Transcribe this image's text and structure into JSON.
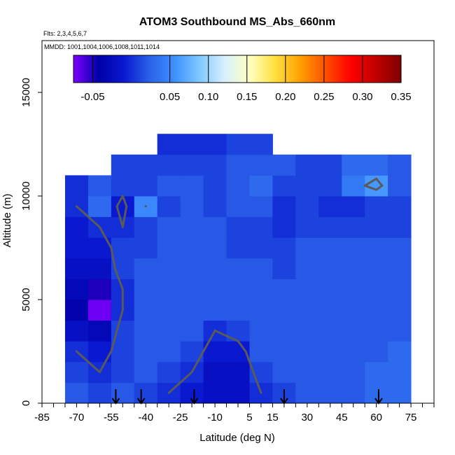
{
  "chart_data": {
    "type": "heatmap",
    "title": "ATOM3 Southbound MS_Abs_660nm",
    "flights_note": "Flts: 2,3,4,5,6,7",
    "dates_note": "MMDD: 1001,1004,1006,1008,1011,1014",
    "xlabel": "Latitude (deg N)",
    "ylabel": "Altitude (m)",
    "xlim": [
      -85,
      85
    ],
    "ylim": [
      0,
      17500
    ],
    "x_ticks": [
      -85,
      -70,
      -55,
      -40,
      -25,
      -10,
      5,
      15,
      30,
      45,
      60,
      75
    ],
    "y_ticks": [
      0,
      5000,
      10000,
      15000
    ],
    "colorbar": {
      "range": [
        -0.075,
        0.35
      ],
      "tick_values": [
        -0.05,
        0.05,
        0.1,
        0.15,
        0.2,
        0.25,
        0.3,
        0.35
      ],
      "tick_labels": [
        "-0.05",
        "0.05",
        "0.10",
        "0.15",
        "0.20",
        "0.25",
        "0.30",
        "0.35"
      ],
      "colors": [
        "#7f00ff",
        "#0000a8",
        "#0a18d0",
        "#2a60e8",
        "#3d90ff",
        "#80c8ff",
        "#d8f0ff",
        "#ffffc0",
        "#ffe040",
        "#ffa000",
        "#ff5000",
        "#ff0000",
        "#c00000",
        "#800000"
      ]
    },
    "lat_centers": [
      -70,
      -60,
      -50,
      -40,
      -30,
      -20,
      -10,
      0,
      10,
      20,
      30,
      40,
      50,
      60,
      70
    ],
    "alt_centers": [
      500,
      1500,
      2500,
      3500,
      4500,
      5500,
      6500,
      7500,
      8500,
      9500,
      10500,
      11500,
      12500
    ],
    "values": [
      [
        0.02,
        0.01,
        0.02,
        0.01,
        0.0,
        -0.01,
        -0.02,
        -0.02,
        0.0,
        0.01,
        0.02,
        0.02,
        0.02,
        0.03,
        0.03
      ],
      [
        0.01,
        0.0,
        0.01,
        0.02,
        0.01,
        0.0,
        -0.02,
        -0.02,
        0.01,
        0.02,
        0.02,
        0.02,
        0.02,
        0.03,
        0.03
      ],
      [
        0.0,
        -0.01,
        0.01,
        0.02,
        0.02,
        0.01,
        -0.01,
        -0.01,
        0.02,
        0.02,
        0.02,
        0.02,
        0.02,
        0.02,
        0.03
      ],
      [
        -0.02,
        -0.03,
        0.01,
        0.02,
        0.02,
        0.02,
        0.0,
        0.01,
        0.02,
        0.02,
        0.02,
        0.02,
        0.02,
        0.02,
        0.02
      ],
      [
        -0.04,
        -0.07,
        0.0,
        0.02,
        0.02,
        0.02,
        0.02,
        0.02,
        0.02,
        0.02,
        0.02,
        0.02,
        0.02,
        0.02,
        0.02
      ],
      [
        -0.03,
        -0.05,
        0.0,
        0.02,
        0.02,
        0.02,
        0.02,
        0.02,
        0.02,
        0.02,
        0.02,
        0.02,
        0.02,
        0.02,
        0.02
      ],
      [
        -0.02,
        -0.02,
        0.01,
        0.02,
        0.02,
        0.02,
        0.02,
        0.02,
        0.02,
        0.01,
        0.02,
        0.02,
        0.02,
        0.02,
        0.02
      ],
      [
        -0.01,
        -0.01,
        0.01,
        0.01,
        0.02,
        0.02,
        0.02,
        0.01,
        0.01,
        0.01,
        0.02,
        0.02,
        0.02,
        0.02,
        0.02
      ],
      [
        -0.01,
        0.0,
        0.0,
        0.01,
        0.02,
        0.02,
        0.02,
        0.01,
        0.01,
        0.0,
        0.01,
        0.01,
        0.01,
        0.01,
        0.01
      ],
      [
        0.0,
        0.03,
        -0.01,
        0.05,
        0.01,
        0.02,
        0.01,
        0.02,
        0.02,
        0.0,
        0.01,
        0.0,
        0.0,
        0.01,
        0.01
      ],
      [
        0.0,
        0.02,
        0.01,
        0.01,
        0.02,
        0.02,
        0.01,
        0.02,
        0.03,
        0.01,
        0.01,
        0.01,
        0.04,
        0.06,
        0.02
      ],
      [
        null,
        null,
        0.01,
        0.01,
        0.01,
        0.01,
        0.01,
        0.02,
        0.02,
        0.02,
        0.01,
        0.01,
        0.03,
        0.03,
        0.02
      ],
      [
        null,
        null,
        null,
        null,
        0.0,
        0.0,
        0.0,
        0.01,
        0.01,
        null,
        null,
        null,
        null,
        null,
        null
      ]
    ],
    "profile_arrows_lat": [
      -53,
      -42,
      -19,
      20,
      61
    ]
  }
}
